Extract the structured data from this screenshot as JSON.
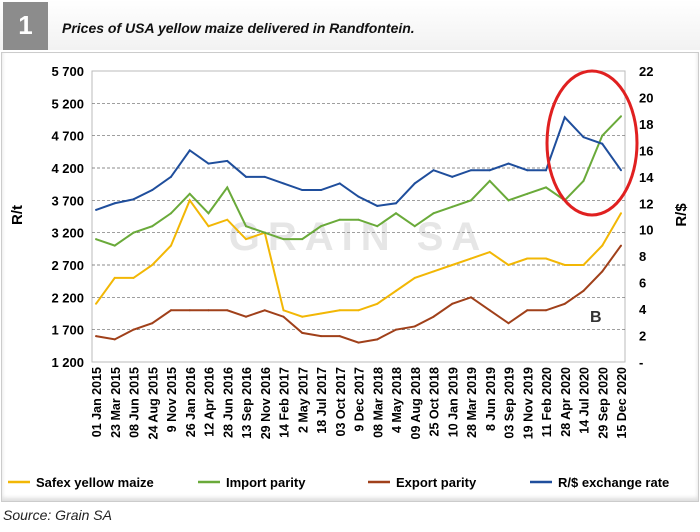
{
  "figure": {
    "number": "1",
    "title": "Prices of USA yellow maize delivered in Randfontein.",
    "source": "Source: Grain SA",
    "watermark": "GRAIN SA"
  },
  "chart_data": {
    "type": "line",
    "title": "Prices of USA yellow maize delivered in Randfontein.",
    "ylabel": "R/t",
    "y2label": "R/$",
    "ylim": [
      1200,
      5700
    ],
    "y2lim": [
      0,
      22
    ],
    "yticks": [
      "5 700",
      "5 200",
      "4 700",
      "4 200",
      "3 700",
      "3 200",
      "2 700",
      "2 200",
      "1 700",
      "1 200"
    ],
    "y2ticks": [
      "22",
      "20",
      "18",
      "16",
      "14",
      "12",
      "10",
      "8",
      "6",
      "4",
      "2",
      "-"
    ],
    "grid": true,
    "legend": "bottom",
    "categories": [
      "01 Jan 2015",
      "23 Mar 2015",
      "08 Jun 2015",
      "24 Aug 2015",
      "9 Nov 2015",
      "26 Jan 2016",
      "12 Apr 2016",
      "28 Jun 2016",
      "13 Sep 2016",
      "29 Nov 2016",
      "14 Feb 2017",
      "2 May 2017",
      "18 Jul 2017",
      "03 Oct 2017",
      "9 Dec 2017",
      "08 Mar 2018",
      "4 May 2018",
      "09 Aug 2018",
      "25 Oct 2018",
      "10 Jan 2019",
      "28 Mar 2019",
      "8 Jun 2019",
      "03 Sep 2019",
      "19 Nov 2019",
      "11 Feb 2020",
      "28 Apr 2020",
      "14 Jul 2020",
      "29 Sep 2020",
      "15 Dec 2020"
    ],
    "series": [
      {
        "name": "Safex yellow maize",
        "axis": "left",
        "color": "#f2b705",
        "values": [
          2100,
          2500,
          2500,
          2700,
          3000,
          3700,
          3300,
          3400,
          3100,
          3200,
          2000,
          1900,
          1950,
          2000,
          2000,
          2100,
          2300,
          2500,
          2600,
          2700,
          2800,
          2900,
          2700,
          2800,
          2800,
          2700,
          2700,
          3000,
          3500
        ]
      },
      {
        "name": "Import parity",
        "axis": "left",
        "color": "#6aaa3a",
        "values": [
          3100,
          3000,
          3200,
          3300,
          3500,
          3800,
          3500,
          3900,
          3300,
          3200,
          3100,
          3100,
          3300,
          3400,
          3400,
          3300,
          3500,
          3300,
          3500,
          3600,
          3700,
          4000,
          3700,
          3800,
          3900,
          3700,
          4000,
          4700,
          5000
        ]
      },
      {
        "name": "Export parity",
        "axis": "left",
        "color": "#a0401a",
        "values": [
          1600,
          1550,
          1700,
          1800,
          2000,
          2000,
          2000,
          2000,
          1900,
          2000,
          1900,
          1650,
          1600,
          1600,
          1500,
          1550,
          1700,
          1750,
          1900,
          2100,
          2200,
          2000,
          1800,
          2000,
          2000,
          2100,
          2300,
          2600,
          3000
        ]
      },
      {
        "name": "R/$ exchange rate",
        "axis": "right",
        "color": "#1f4e9c",
        "values": [
          11.5,
          12,
          12.3,
          13,
          14,
          16,
          15,
          15.2,
          14,
          14,
          13.5,
          13,
          13,
          13.5,
          12.5,
          11.8,
          12,
          13.5,
          14.5,
          14,
          14.5,
          14.5,
          15,
          14.5,
          14.5,
          18.5,
          17,
          16.5,
          14.5
        ]
      }
    ],
    "annotations": [
      "B"
    ],
    "highlight_color": "#e02020"
  }
}
